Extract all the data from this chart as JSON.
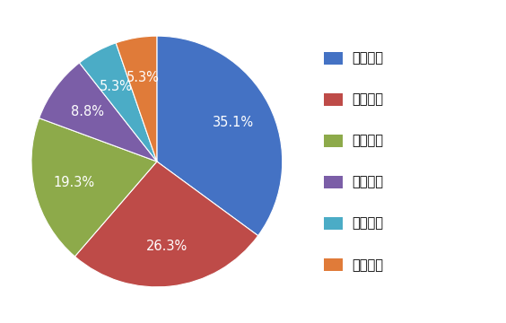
{
  "labels": [
    "华东地区",
    "华中地区",
    "华南地区",
    "华北地区",
    "东北地区",
    "西北地区"
  ],
  "values": [
    35.1,
    26.3,
    19.3,
    8.8,
    5.3,
    5.3
  ],
  "colors": [
    "#4472C4",
    "#BE4B48",
    "#8DAA4A",
    "#7B5EA7",
    "#4BACC6",
    "#E07B39"
  ],
  "pct_labels": [
    "35.1%",
    "26.3%",
    "19.3%",
    "8.8%",
    "5.3%",
    "5.3%"
  ],
  "startangle": 90,
  "figsize": [
    5.64,
    3.6
  ],
  "dpi": 100,
  "legend_fontsize": 10.5,
  "autopct_fontsize": 10.5,
  "pctdistance": 0.68
}
